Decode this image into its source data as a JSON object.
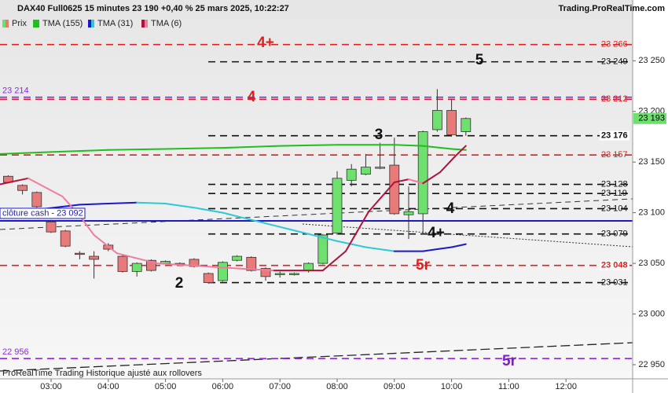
{
  "chart_data": {
    "type": "candlestick",
    "title": "DAX40 Full0625 15 minutes 23 190 +0,40 % 25 mars 2025, 10:22:27",
    "source": "Trading.ProRealTime.com",
    "footer": "ProRealTime Trading Historique ajusté aux rollovers",
    "xlim": [
      2.107,
      13.165
    ],
    "ylim": [
      22936,
      23310
    ],
    "xticks": [
      {
        "value": 3,
        "label": "03:00"
      },
      {
        "value": 4,
        "label": "04:00"
      },
      {
        "value": 5,
        "label": "05:00"
      },
      {
        "value": 6,
        "label": "06:00"
      },
      {
        "value": 7,
        "label": "07:00"
      },
      {
        "value": 8,
        "label": "08:00"
      },
      {
        "value": 9,
        "label": "09:00"
      },
      {
        "value": 10,
        "label": "10:00"
      },
      {
        "value": 11,
        "label": "11:00"
      },
      {
        "value": 12,
        "label": "12:00"
      }
    ],
    "yticks": [
      {
        "value": 22950,
        "label": "22 950"
      },
      {
        "value": 23000,
        "label": "23 000"
      },
      {
        "value": 23050,
        "label": "23 050"
      },
      {
        "value": 23100,
        "label": "23 100"
      },
      {
        "value": 23150,
        "label": "23 150"
      },
      {
        "value": 23200,
        "label": "23 200"
      },
      {
        "value": 23250,
        "label": "23 250"
      }
    ],
    "candles": {
      "name": "Prix",
      "up_color": "#6ee06e",
      "down_color": "#e87a7a",
      "x": [
        2.25,
        2.5,
        2.75,
        3,
        3.25,
        3.5,
        3.75,
        4,
        4.25,
        4.5,
        4.75,
        5,
        5.25,
        5.5,
        5.75,
        6,
        6.25,
        6.5,
        6.75,
        7,
        7.25,
        7.5,
        7.75,
        8,
        8.25,
        8.5,
        8.75,
        9,
        9.25,
        9.5,
        9.75,
        10,
        10.25
      ],
      "open": [
        23136,
        23127,
        23120,
        23091,
        23082,
        23060,
        23057,
        23068,
        23057,
        23042,
        23053,
        23050,
        23050,
        23054,
        23040,
        23033,
        23053,
        23056,
        23045,
        23039,
        23039,
        23043,
        23050,
        23080,
        23132,
        23138,
        23144,
        23147,
        23098,
        23099,
        23182,
        23201,
        23180
      ],
      "high": [
        23137,
        23128,
        23121,
        23093,
        23083,
        23062,
        23062,
        23070,
        23058,
        23051,
        23054,
        23053,
        23051,
        23055,
        23041,
        23052,
        23058,
        23057,
        23046,
        23042,
        23041,
        23051,
        23079,
        23141,
        23148,
        23158,
        23169,
        23174,
        23126,
        23181,
        23222,
        23212,
        23194
      ],
      "low": [
        23129,
        23118,
        23105,
        23080,
        23066,
        23054,
        23035,
        23062,
        23041,
        23037,
        23042,
        23049,
        23048,
        23046,
        23030,
        23032,
        23052,
        23042,
        23033,
        23036,
        23038,
        23041,
        23049,
        23078,
        23126,
        23137,
        23143,
        23098,
        23074,
        23079,
        23180,
        23175,
        23176
      ],
      "close": [
        23130,
        23122,
        23106,
        23081,
        23067,
        23059,
        23054,
        23064,
        23042,
        23050,
        23043,
        23052,
        23049,
        23047,
        23031,
        23051,
        23057,
        23043,
        23037,
        23040,
        23040,
        23050,
        23078,
        23134,
        23143,
        23145,
        23145,
        23099,
        23101,
        23180,
        23201,
        23177,
        23193
      ]
    },
    "lines": [
      {
        "name": "TMA (155)",
        "color": "#1fbf1f",
        "x": [
          2.107,
          3,
          4,
          5,
          6,
          7,
          8,
          9,
          9.5,
          10,
          10.25
        ],
        "values": [
          23158,
          23160,
          23162,
          23163,
          23164,
          23166,
          23167,
          23167,
          23166,
          23163,
          23162
        ]
      },
      {
        "name": "TMA (31)",
        "color": "#1a1acc",
        "color_falling": "#2ec8d8",
        "x": [
          2.107,
          2.75,
          3.5,
          4.5,
          5,
          5.5,
          6,
          6.5,
          7,
          7.5,
          8,
          8.5,
          9,
          9.25,
          9.5,
          9.75,
          10,
          10.25
        ],
        "values": [
          23099,
          23103,
          23108,
          23110,
          23109,
          23105,
          23100,
          23093,
          23086,
          23079,
          23072,
          23066,
          23062,
          23062,
          23062,
          23064,
          23066,
          23069
        ]
      },
      {
        "name": "TMA (6)",
        "color": "#b0123a",
        "color_falling": "#f07ca0",
        "x": [
          2.107,
          2.6,
          3.2,
          3.5,
          3.75,
          4.15,
          4.85,
          5.7,
          6.25,
          6.9,
          7.75,
          8.15,
          8.55,
          9,
          9.25,
          9.5,
          9.8,
          10.05,
          10.25
        ],
        "values": [
          23128,
          23134,
          23116,
          23097,
          23078,
          23060,
          23050,
          23047,
          23045,
          23043,
          23043,
          23062,
          23101,
          23130,
          23133,
          23129,
          23140,
          23155,
          23166
        ]
      }
    ],
    "levels": [
      {
        "value": 23266,
        "label": "23 266",
        "color": "#e02020",
        "extent": "full",
        "side": "right"
      },
      {
        "value": 23249,
        "label": "23 249",
        "color": "#111111",
        "extent": "partial",
        "side": "right"
      },
      {
        "value": 23214,
        "label": "23 214",
        "color": "#8a2be2",
        "extent": "full",
        "side": "left"
      },
      {
        "value": 23212,
        "label": "23 212",
        "color": "#e02020",
        "extent": "full",
        "side": "right"
      },
      {
        "value": 23176,
        "label": "23 176",
        "color": "#111111",
        "extent": "partial",
        "side": "right",
        "bold": true
      },
      {
        "value": 23157,
        "label": "23 157",
        "color": "#e02020",
        "extent": "full",
        "side": "right"
      },
      {
        "value": 23128,
        "label": "23 128",
        "color": "#111111",
        "extent": "partial",
        "side": "right"
      },
      {
        "value": 23119,
        "label": "23 119",
        "color": "#111111",
        "extent": "partial",
        "side": "right"
      },
      {
        "value": 23104,
        "label": "23 104",
        "color": "#111111",
        "extent": "partial",
        "side": "right"
      },
      {
        "value": 23079,
        "label": "23 079",
        "color": "#111111",
        "extent": "partial",
        "side": "right"
      },
      {
        "value": 23048,
        "label": "23 048",
        "color": "#e02020",
        "extent": "full",
        "side": "right",
        "bold": true
      },
      {
        "value": 23031,
        "label": "23 031",
        "color": "#111111",
        "extent": "partial",
        "side": "right"
      },
      {
        "value": 22956,
        "label": "22 956",
        "color": "#8a2be2",
        "extent": "full",
        "side": "left"
      }
    ],
    "cash_close": {
      "value": 23092,
      "label": "clôture cash - 23 092",
      "color": "#1a1acc"
    },
    "last_price": {
      "value": 23193,
      "label": "23 193",
      "color": "#6ee06e"
    },
    "annotations": [
      {
        "text": "4+",
        "color": "#e02020"
      },
      {
        "text": "5",
        "color": "#111111"
      },
      {
        "text": "4",
        "color": "#e02020"
      },
      {
        "text": "3",
        "color": "#111111"
      },
      {
        "text": "4",
        "color": "#111111"
      },
      {
        "text": "4+",
        "color": "#111111"
      },
      {
        "text": "5r",
        "color": "#e02020"
      },
      {
        "text": "2",
        "color": "#111111"
      },
      {
        "text": "5r",
        "color": "#7a1fc0"
      }
    ]
  }
}
